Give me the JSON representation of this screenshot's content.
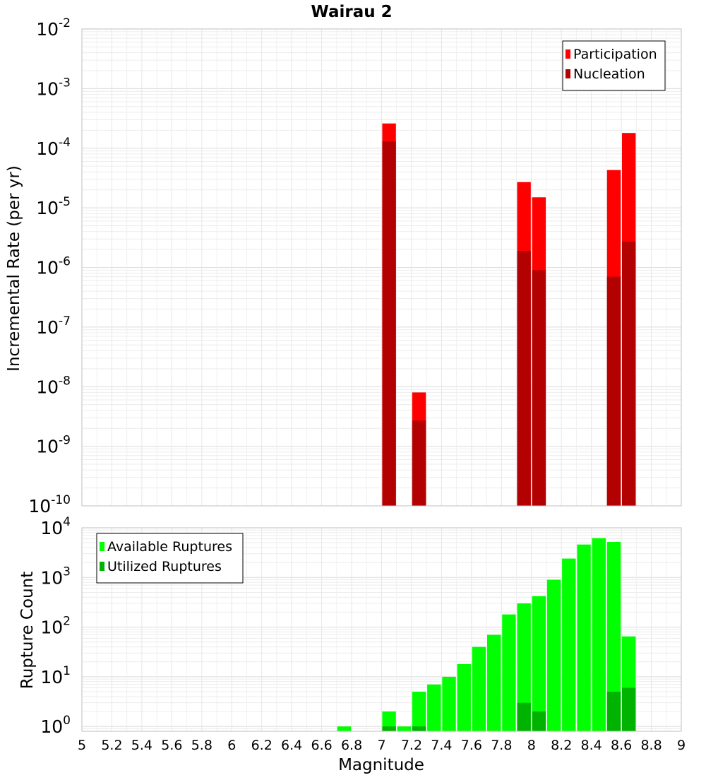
{
  "chart_data": [
    {
      "type": "bar",
      "title": "Wairau 2",
      "ylabel": "Incremental Rate (per yr)",
      "xlabel": "",
      "yscale": "log",
      "ylim": [
        1e-10,
        0.01
      ],
      "xlim": [
        5,
        9
      ],
      "grid": true,
      "legend_position": "top-right",
      "y_ticks": [
        {
          "base": "10",
          "exp": "-10"
        },
        {
          "base": "10",
          "exp": "-9"
        },
        {
          "base": "10",
          "exp": "-8"
        },
        {
          "base": "10",
          "exp": "-7"
        },
        {
          "base": "10",
          "exp": "-6"
        },
        {
          "base": "10",
          "exp": "-5"
        },
        {
          "base": "10",
          "exp": "-4"
        },
        {
          "base": "10",
          "exp": "-3"
        },
        {
          "base": "10",
          "exp": "-2"
        }
      ],
      "series": [
        {
          "name": "Participation",
          "color": "#ff0000",
          "x": [
            7.05,
            7.25,
            7.95,
            8.05,
            8.55,
            8.65
          ],
          "values": [
            0.00026,
            8e-09,
            2.7e-05,
            1.5e-05,
            4.3e-05,
            0.00018
          ]
        },
        {
          "name": "Nucleation",
          "color": "#b30000",
          "x": [
            7.05,
            7.25,
            7.95,
            8.05,
            8.55,
            8.65
          ],
          "values": [
            0.00013,
            2.7e-09,
            1.9e-06,
            9e-07,
            7e-07,
            2.7e-06
          ]
        }
      ]
    },
    {
      "type": "bar",
      "title": "",
      "ylabel": "Rupture Count",
      "xlabel": "Magnitude",
      "yscale": "log",
      "ylim": [
        0.8,
        10000
      ],
      "xlim": [
        5,
        9
      ],
      "grid": true,
      "legend_position": "top-left",
      "x_ticks": [
        "5",
        "5.2",
        "5.4",
        "5.6",
        "5.8",
        "6",
        "6.2",
        "6.4",
        "6.6",
        "6.8",
        "7",
        "7.2",
        "7.4",
        "7.6",
        "7.8",
        "8",
        "8.2",
        "8.4",
        "8.6",
        "8.8",
        "9"
      ],
      "y_ticks": [
        {
          "base": "10",
          "exp": "0"
        },
        {
          "base": "10",
          "exp": "1"
        },
        {
          "base": "10",
          "exp": "2"
        },
        {
          "base": "10",
          "exp": "3"
        },
        {
          "base": "10",
          "exp": "4"
        }
      ],
      "series": [
        {
          "name": "Available Ruptures",
          "color": "#00ff00",
          "x": [
            6.75,
            7.05,
            7.15,
            7.25,
            7.35,
            7.45,
            7.55,
            7.65,
            7.75,
            7.85,
            7.95,
            8.05,
            8.15,
            8.25,
            8.35,
            8.45,
            8.55,
            8.65
          ],
          "values": [
            1,
            2,
            1,
            5,
            7,
            10,
            18,
            40,
            70,
            180,
            300,
            420,
            900,
            2400,
            4600,
            6200,
            5200,
            65
          ]
        },
        {
          "name": "Utilized Ruptures",
          "color": "#00b300",
          "x": [
            7.05,
            7.25,
            7.95,
            8.05,
            8.55,
            8.65
          ],
          "values": [
            1,
            1,
            3,
            2,
            5,
            6
          ]
        }
      ]
    }
  ]
}
